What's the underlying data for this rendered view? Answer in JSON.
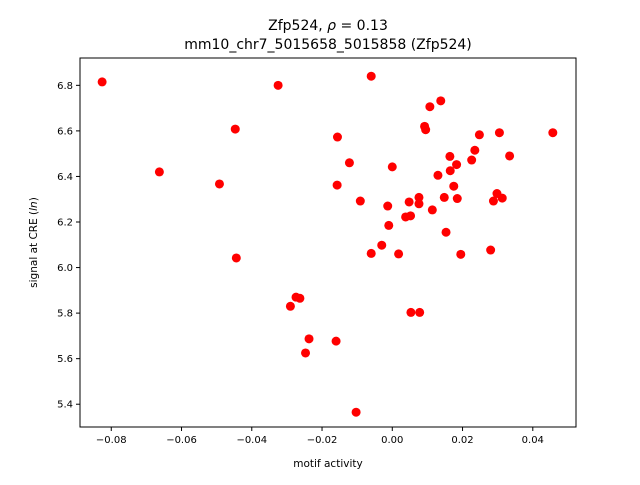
{
  "chart_data": {
    "type": "scatter",
    "title_line1_prefix": "Zfp524, ",
    "title_line1_rho": "ρ",
    "title_line1_suffix": " = 0.13",
    "title_line2": "mm10_chr7_5015658_5015858 (Zfp524)",
    "xlabel": "motif activity",
    "ylabel_prefix": "signal at CRE (",
    "ylabel_italic": "ln",
    "ylabel_suffix": ")",
    "xlim": [
      -0.0889,
      0.0523
    ],
    "ylim": [
      5.3,
      6.92
    ],
    "xticks": [
      -0.08,
      -0.06,
      -0.04,
      -0.02,
      0.0,
      0.02,
      0.04
    ],
    "xtick_labels": [
      "−0.08",
      "−0.06",
      "−0.04",
      "−0.02",
      "0.00",
      "0.02",
      "0.04"
    ],
    "yticks": [
      5.4,
      5.6,
      5.8,
      6.0,
      6.2,
      6.4,
      6.6,
      6.8
    ],
    "ytick_labels": [
      "5.4",
      "5.6",
      "5.8",
      "6.0",
      "6.2",
      "6.4",
      "6.6",
      "6.8"
    ],
    "marker_color": "#ff0000",
    "grid": false,
    "points": [
      {
        "x": -0.0826,
        "y": 6.815
      },
      {
        "x": -0.0325,
        "y": 6.8
      },
      {
        "x": -0.006,
        "y": 6.84
      },
      {
        "x": -0.0663,
        "y": 6.42
      },
      {
        "x": -0.0492,
        "y": 6.367
      },
      {
        "x": -0.0447,
        "y": 6.608
      },
      {
        "x": -0.0444,
        "y": 6.042
      },
      {
        "x": -0.0156,
        "y": 6.573
      },
      {
        "x": -0.0157,
        "y": 6.362
      },
      {
        "x": -0.0122,
        "y": 6.46
      },
      {
        "x": -0.0091,
        "y": 6.292
      },
      {
        "x": -0.003,
        "y": 6.098
      },
      {
        "x": -0.006,
        "y": 6.062
      },
      {
        "x": -0.0013,
        "y": 6.27
      },
      {
        "x": -0.001,
        "y": 6.185
      },
      {
        "x": 0.0,
        "y": 6.442
      },
      {
        "x": 0.0018,
        "y": 6.06
      },
      {
        "x": 0.0038,
        "y": 6.222
      },
      {
        "x": 0.0048,
        "y": 6.288
      },
      {
        "x": 0.0052,
        "y": 6.227
      },
      {
        "x": 0.0076,
        "y": 6.308
      },
      {
        "x": 0.0076,
        "y": 6.28
      },
      {
        "x": 0.0092,
        "y": 6.62
      },
      {
        "x": 0.0095,
        "y": 6.605
      },
      {
        "x": 0.0107,
        "y": 6.706
      },
      {
        "x": 0.0114,
        "y": 6.253
      },
      {
        "x": 0.013,
        "y": 6.405
      },
      {
        "x": 0.0138,
        "y": 6.732
      },
      {
        "x": 0.0148,
        "y": 6.308
      },
      {
        "x": 0.0153,
        "y": 6.155
      },
      {
        "x": 0.0164,
        "y": 6.488
      },
      {
        "x": 0.0165,
        "y": 6.425
      },
      {
        "x": 0.0175,
        "y": 6.357
      },
      {
        "x": 0.0183,
        "y": 6.452
      },
      {
        "x": 0.0185,
        "y": 6.303
      },
      {
        "x": 0.0195,
        "y": 6.058
      },
      {
        "x": 0.0226,
        "y": 6.472
      },
      {
        "x": 0.0235,
        "y": 6.515
      },
      {
        "x": 0.0248,
        "y": 6.583
      },
      {
        "x": 0.028,
        "y": 6.077
      },
      {
        "x": 0.0288,
        "y": 6.292
      },
      {
        "x": 0.0298,
        "y": 6.325
      },
      {
        "x": 0.0305,
        "y": 6.592
      },
      {
        "x": 0.0313,
        "y": 6.305
      },
      {
        "x": 0.0334,
        "y": 6.49
      },
      {
        "x": 0.0457,
        "y": 6.592
      },
      {
        "x": -0.029,
        "y": 5.83
      },
      {
        "x": -0.0274,
        "y": 5.87
      },
      {
        "x": -0.0263,
        "y": 5.865
      },
      {
        "x": -0.0237,
        "y": 5.687
      },
      {
        "x": -0.0247,
        "y": 5.625
      },
      {
        "x": -0.016,
        "y": 5.677
      },
      {
        "x": 0.0053,
        "y": 5.803
      },
      {
        "x": 0.0078,
        "y": 5.803
      },
      {
        "x": -0.0103,
        "y": 5.365
      }
    ]
  }
}
